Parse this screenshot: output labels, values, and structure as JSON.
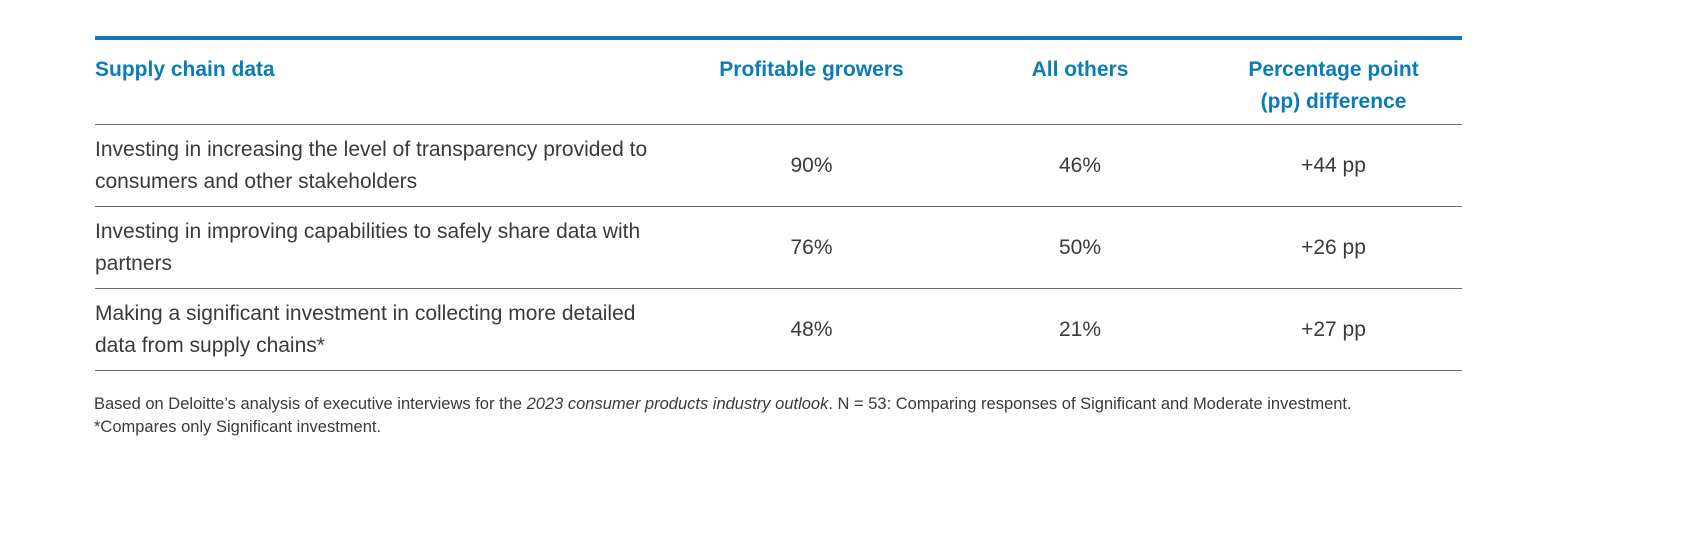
{
  "table": {
    "headers": [
      "Supply chain data",
      "Profitable growers",
      "All others",
      "Percentage point (pp) difference"
    ],
    "rows": [
      [
        "Investing in increasing the level of transparency provided to consumers and other stakeholders",
        "90%",
        "46%",
        "+44 pp"
      ],
      [
        "Investing in improving capabilities to safely share data with partners",
        "76%",
        "50%",
        "+26 pp"
      ],
      [
        "Making a significant investment in collecting more detailed data from supply chains*",
        "48%",
        "21%",
        "+27 pp"
      ]
    ],
    "accent_color": "#0a7cb6"
  },
  "notes": {
    "source_prefix": "Based on Deloitte’s analysis of executive interviews for the ",
    "source_italic": "2023 consumer products industry outlook",
    "source_suffix": ". N = 53: Comparing responses of Significant and Moderate investment.",
    "footnote": "*Compares only Significant investment."
  }
}
